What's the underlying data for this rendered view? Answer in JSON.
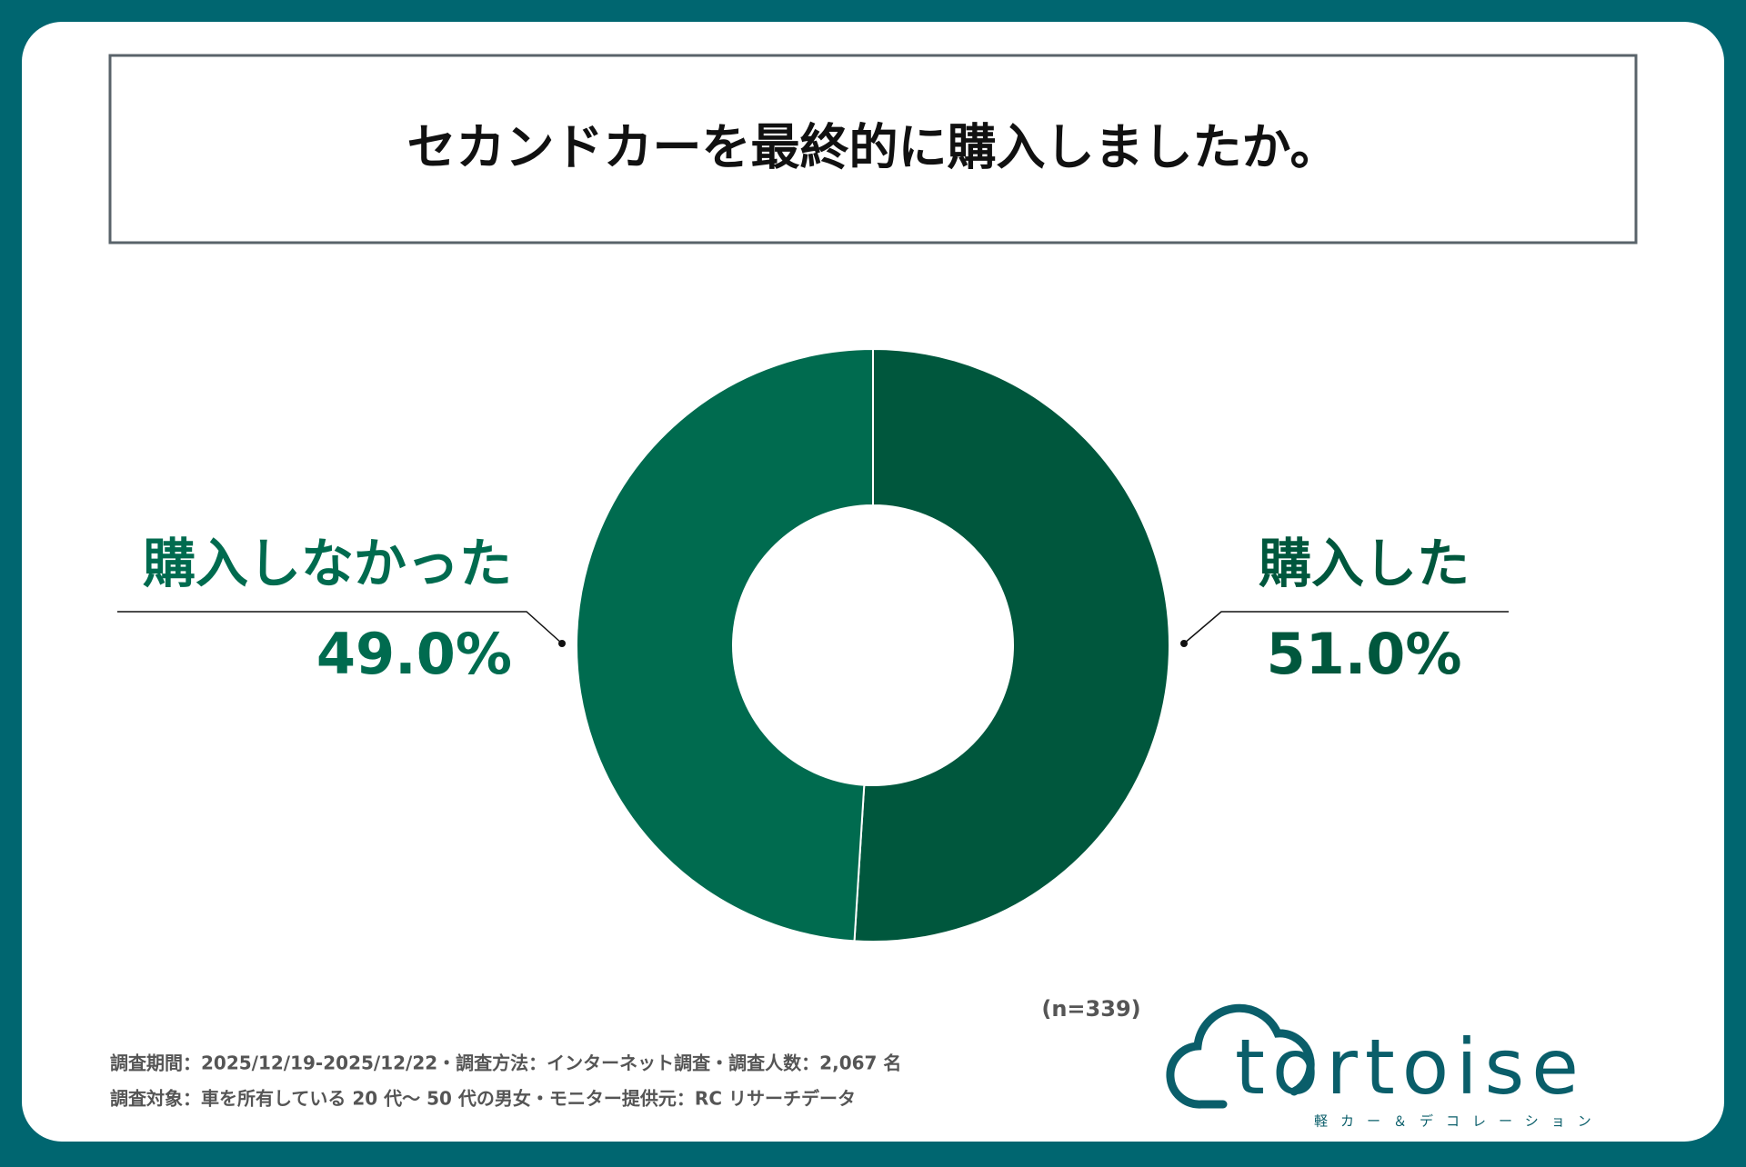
{
  "chart_data": {
    "type": "donut",
    "title": "セカンドカーを最終的に購入しましたか。",
    "categories": [
      "購入した",
      "購入しなかった"
    ],
    "values": [
      51.0,
      49.0
    ],
    "value_labels": [
      "51.0%",
      "49.0%"
    ],
    "colors": [
      "#00573d",
      "#006b4f"
    ],
    "sample_size": "(n=339)",
    "footnotes": [
      "調査期間：2025/12/19-2025/12/22・調査方法：インターネット調査・調査人数：2,067 名",
      "調査対象：車を所有している 20 代〜 50 代の男女・モニター提供元：RC リサーチデータ"
    ]
  },
  "logo": {
    "name": "tortoise",
    "tagline": "軽カー＆デコレーション"
  }
}
